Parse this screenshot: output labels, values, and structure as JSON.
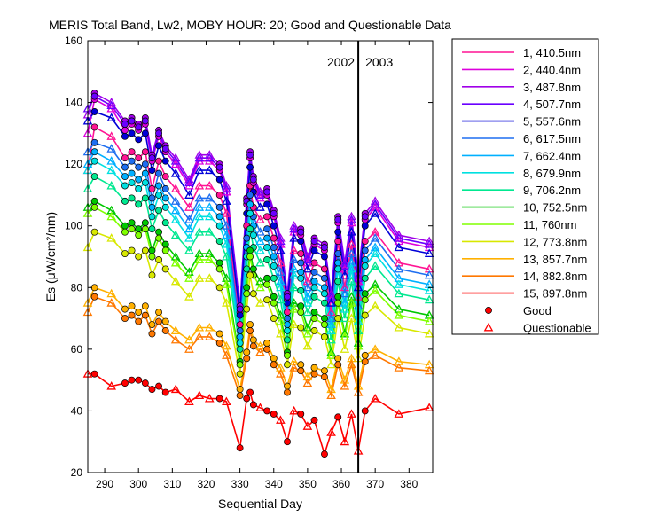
{
  "chart_data": {
    "type": "line",
    "title": "MERIS Total Band,  Lw2, MOBY HOUR: 20;  Good and Questionable Data",
    "xlabel": "Sequential Day",
    "ylabel": "Es (μW/cm²/nm)",
    "xlim": [
      285,
      387
    ],
    "ylim": [
      20,
      160
    ],
    "xticks": [
      290,
      300,
      310,
      320,
      330,
      340,
      350,
      360,
      370,
      380
    ],
    "yticks": [
      20,
      40,
      60,
      80,
      100,
      120,
      140,
      160
    ],
    "grid": false,
    "legend_position": "outside-right",
    "year_boundary": {
      "x": 365,
      "left_label": "2002",
      "right_label": "2003"
    },
    "x": [
      285,
      287,
      292,
      296,
      298,
      300,
      302,
      304,
      306,
      308,
      311,
      315,
      318,
      321,
      324,
      326,
      330,
      332,
      333,
      334,
      336,
      338,
      340,
      342,
      344,
      346,
      348,
      350,
      352,
      355,
      357,
      359,
      361,
      363,
      365,
      367,
      370,
      377,
      386
    ],
    "series": [
      {
        "name": "1, 410.5nm",
        "color": "#ff1493",
        "values": [
          118,
          132,
          129,
          122,
          124,
          122,
          124,
          112,
          121,
          116,
          112,
          106,
          113,
          113,
          110,
          104,
          68,
          100,
          113,
          106,
          102,
          103,
          96,
          88,
          72,
          92,
          91,
          82,
          88,
          86,
          72,
          95,
          80,
          94,
          77,
          95,
          98,
          88,
          86
        ]
      },
      {
        "name": "2, 440.4nm",
        "color": "#dd00dd",
        "values": [
          130,
          141,
          138,
          131,
          133,
          131,
          133,
          121,
          129,
          124,
          120,
          113,
          121,
          121,
          118,
          111,
          72,
          107,
          122,
          114,
          109,
          110,
          103,
          94,
          76,
          98,
          97,
          88,
          94,
          92,
          76,
          101,
          86,
          101,
          82,
          102,
          106,
          95,
          93
        ]
      },
      {
        "name": "3, 487.8nm",
        "color": "#a000e8",
        "values": [
          136,
          143,
          140,
          134,
          135,
          133,
          135,
          123,
          131,
          126,
          122,
          115,
          123,
          123,
          120,
          113,
          74,
          109,
          124,
          116,
          111,
          112,
          105,
          96,
          78,
          100,
          99,
          90,
          96,
          94,
          78,
          103,
          88,
          103,
          84,
          104,
          108,
          97,
          95
        ]
      },
      {
        "name": "4, 507.7nm",
        "color": "#6a00ff",
        "values": [
          138,
          142,
          139,
          133,
          134,
          132,
          134,
          122,
          130,
          125,
          121,
          114,
          122,
          122,
          119,
          112,
          73,
          108,
          123,
          115,
          110,
          111,
          104,
          95,
          77,
          99,
          98,
          89,
          95,
          93,
          77,
          102,
          87,
          102,
          83,
          103,
          107,
          96,
          94
        ]
      },
      {
        "name": "5, 557.6nm",
        "color": "#0000d8",
        "values": [
          134,
          137,
          135,
          129,
          130,
          128,
          130,
          118,
          126,
          121,
          117,
          110,
          118,
          118,
          115,
          108,
          71,
          104,
          119,
          111,
          106,
          107,
          100,
          92,
          75,
          96,
          95,
          86,
          92,
          90,
          75,
          98,
          84,
          98,
          80,
          100,
          104,
          93,
          91
        ]
      },
      {
        "name": "6, 617.5nm",
        "color": "#1e6ef0",
        "values": [
          124,
          127,
          125,
          119,
          121,
          119,
          120,
          109,
          117,
          112,
          108,
          102,
          109,
          109,
          106,
          100,
          66,
          96,
          110,
          103,
          98,
          99,
          93,
          85,
          70,
          89,
          88,
          80,
          85,
          83,
          70,
          91,
          78,
          91,
          74,
          92,
          96,
          86,
          84
        ]
      },
      {
        "name": "7, 662.4nm",
        "color": "#00b0ff",
        "values": [
          120,
          124,
          121,
          116,
          117,
          115,
          117,
          106,
          113,
          109,
          105,
          99,
          106,
          106,
          103,
          97,
          64,
          93,
          107,
          100,
          95,
          96,
          90,
          82,
          68,
          86,
          85,
          77,
          82,
          80,
          68,
          88,
          75,
          88,
          71,
          89,
          93,
          83,
          81
        ]
      },
      {
        "name": "8, 679.9nm",
        "color": "#00e0e0",
        "values": [
          118,
          121,
          118,
          113,
          114,
          112,
          114,
          103,
          110,
          106,
          102,
          96,
          103,
          103,
          100,
          94,
          62,
          90,
          104,
          97,
          92,
          93,
          87,
          80,
          66,
          84,
          83,
          75,
          80,
          78,
          66,
          86,
          73,
          86,
          69,
          87,
          91,
          81,
          79
        ]
      },
      {
        "name": "9, 706.2nm",
        "color": "#00e890",
        "values": [
          112,
          116,
          113,
          108,
          109,
          107,
          109,
          99,
          105,
          101,
          97,
          92,
          98,
          98,
          95,
          90,
          60,
          86,
          99,
          93,
          88,
          89,
          83,
          76,
          63,
          80,
          79,
          72,
          77,
          75,
          63,
          82,
          70,
          82,
          66,
          83,
          87,
          78,
          76
        ]
      },
      {
        "name": "10, 752.5nm",
        "color": "#00c800",
        "values": [
          106,
          108,
          105,
          100,
          101,
          99,
          101,
          92,
          98,
          94,
          90,
          85,
          91,
          91,
          88,
          83,
          56,
          80,
          92,
          86,
          82,
          83,
          77,
          71,
          59,
          75,
          74,
          67,
          72,
          70,
          59,
          77,
          65,
          77,
          62,
          78,
          81,
          73,
          71
        ]
      },
      {
        "name": "11,   760nm",
        "color": "#80ff00",
        "values": [
          104,
          106,
          103,
          98,
          99,
          97,
          99,
          90,
          96,
          92,
          88,
          83,
          89,
          89,
          86,
          81,
          55,
          78,
          90,
          84,
          80,
          81,
          75,
          69,
          58,
          73,
          72,
          65,
          70,
          68,
          58,
          75,
          64,
          75,
          61,
          76,
          79,
          71,
          69
        ]
      },
      {
        "name": "12, 773.8nm",
        "color": "#d8e800",
        "values": [
          93,
          98,
          96,
          91,
          92,
          90,
          92,
          84,
          89,
          86,
          82,
          77,
          83,
          83,
          80,
          75,
          52,
          73,
          84,
          78,
          75,
          76,
          70,
          65,
          55,
          68,
          67,
          61,
          66,
          64,
          55,
          70,
          60,
          70,
          57,
          71,
          74,
          67,
          65
        ]
      },
      {
        "name": "13, 857.7nm",
        "color": "#ffb000",
        "values": [
          75,
          80,
          78,
          73,
          74,
          72,
          74,
          68,
          72,
          69,
          66,
          63,
          67,
          67,
          65,
          61,
          47,
          59,
          68,
          63,
          61,
          62,
          57,
          54,
          48,
          56,
          55,
          51,
          54,
          53,
          47,
          57,
          50,
          57,
          48,
          58,
          60,
          56,
          55
        ]
      },
      {
        "name": "14, 882.8nm",
        "color": "#ff7800",
        "values": [
          72,
          77,
          75,
          70,
          71,
          69,
          71,
          65,
          69,
          66,
          63,
          60,
          64,
          64,
          62,
          58,
          45,
          57,
          66,
          61,
          59,
          60,
          55,
          52,
          46,
          54,
          53,
          49,
          52,
          51,
          45,
          55,
          48,
          55,
          46,
          56,
          58,
          54,
          53
        ]
      },
      {
        "name": "15, 897.8nm",
        "color": "#ff0000",
        "values": [
          52,
          52,
          48,
          49,
          50,
          50,
          49,
          47,
          48,
          46,
          47,
          43,
          45,
          44,
          44,
          43,
          28,
          44,
          46,
          42,
          41,
          40,
          39,
          37,
          30,
          40,
          39,
          35,
          37,
          26,
          33,
          38,
          30,
          39,
          27,
          40,
          44,
          39,
          41
        ]
      }
    ],
    "questionable_x": [
      285,
      292,
      311,
      315,
      318,
      321,
      326,
      336,
      342,
      346,
      350,
      357,
      361,
      363,
      365,
      370,
      377,
      386
    ],
    "markers": {
      "good_label": "Good",
      "questionable_label": "Questionable",
      "good_color": "#ff0000",
      "questionable_color": "#ff0000"
    }
  }
}
